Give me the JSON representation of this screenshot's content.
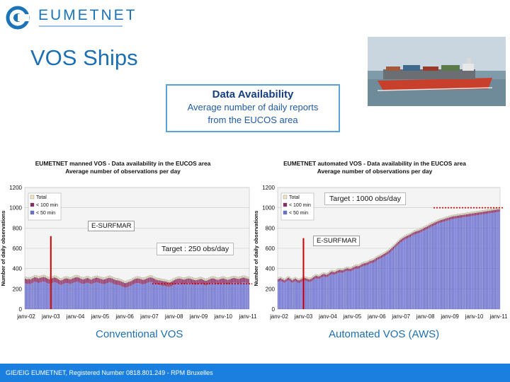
{
  "header": {
    "logo_text": "EUMETNET",
    "title": "VOS Ships"
  },
  "availability_box": {
    "title": "Data Availability",
    "line1": "Average number of daily reports",
    "line2": "from the EUCOS area"
  },
  "captions": {
    "left": "Conventional VOS",
    "right": "Automated VOS (AWS)"
  },
  "footer": {
    "text": "GIE/EIG EUMETNET, Registered Number 0818.801.249 - RPM Bruxelles"
  },
  "colors": {
    "brand": "#1b74b8",
    "footer_bg": "#1b7fe0",
    "bar_blue": "#6b6fd0",
    "bar_purple": "#8a2b63",
    "bar_beige": "#efe7c4",
    "target_line": "#cc0000"
  },
  "chart_data": [
    {
      "type": "bar",
      "stacked": true,
      "title": "EUMETNET manned VOS - Data availability in the EUCOS area",
      "subtitle": "Average number of observations per day",
      "ylabel": "Number of daily observations",
      "xlabel": "",
      "ylim": [
        0,
        1200
      ],
      "yticks": [
        0,
        200,
        400,
        600,
        800,
        1000,
        1200
      ],
      "xticks": [
        "janv-02",
        "janv-03",
        "janv-04",
        "janv-05",
        "janv-06",
        "janv-07",
        "janv-08",
        "janv-09",
        "janv-10",
        "janv-11"
      ],
      "legend": [
        "Total",
        "< 100 min",
        "< 50 min"
      ],
      "legend_position": "top-left",
      "grid": true,
      "series": [
        {
          "name": "< 50 min",
          "values": [
            255,
            250,
            248,
            252,
            247,
            256,
            262,
            270,
            268,
            264,
            258,
            262,
            266,
            270,
            272,
            268,
            262,
            255,
            250,
            252,
            258,
            262,
            266,
            264,
            258,
            250,
            242,
            238,
            242,
            250,
            255,
            258,
            256,
            252,
            248,
            252,
            258,
            264,
            268,
            270,
            268,
            262,
            255,
            250,
            248,
            252,
            258,
            262,
            258,
            250,
            246,
            252,
            258,
            262,
            266,
            262,
            258,
            254,
            250,
            246,
            248,
            252,
            258,
            262,
            264,
            260,
            255,
            248,
            244,
            240,
            238,
            236,
            232,
            226,
            220,
            214,
            212,
            216,
            222,
            226,
            230,
            238,
            245,
            252,
            256,
            258,
            256,
            252,
            248,
            244,
            246,
            250,
            256,
            262,
            266,
            268,
            264,
            258,
            252,
            246,
            242,
            240,
            238,
            234,
            232,
            230,
            228,
            224,
            220,
            218,
            222,
            228,
            236,
            242,
            248,
            252,
            256,
            256,
            252,
            248,
            246,
            248,
            252,
            256,
            258,
            254,
            250,
            246,
            242,
            240,
            242,
            246,
            250,
            252,
            248,
            242,
            236,
            234,
            240,
            246,
            252,
            256,
            258,
            256,
            250,
            246,
            244,
            248,
            252,
            256,
            258,
            252,
            248,
            244,
            246,
            250,
            256,
            260,
            262,
            260,
            256,
            252,
            254,
            258,
            262,
            266,
            264,
            260,
            256,
            252
          ]
        },
        {
          "name": "< 100 min",
          "values": [
            45,
            45,
            45,
            45,
            45,
            45,
            45,
            45,
            45,
            45,
            45,
            45,
            45,
            45,
            45,
            45,
            45,
            45,
            45,
            45,
            45,
            45,
            45,
            45,
            45,
            45,
            45,
            45,
            45,
            45,
            45,
            45,
            45,
            45,
            45,
            45,
            45,
            45,
            45,
            45,
            45,
            45,
            45,
            45,
            45,
            45,
            45,
            45,
            45,
            45,
            45,
            45,
            45,
            45,
            45,
            45,
            45,
            45,
            45,
            45,
            45,
            45,
            45,
            45,
            45,
            45,
            45,
            45,
            45,
            45,
            45,
            45,
            45,
            45,
            45,
            45,
            45,
            45,
            45,
            45,
            45,
            45,
            45,
            45,
            45,
            45,
            45,
            45,
            45,
            45,
            45,
            45,
            45,
            45,
            45,
            45,
            45,
            45,
            45,
            45,
            45,
            45,
            45,
            45,
            45,
            45,
            45,
            45,
            45,
            45,
            45,
            45,
            45,
            45,
            45,
            45,
            45,
            45,
            45,
            45,
            45,
            45,
            45,
            45,
            45,
            45,
            45,
            45,
            45,
            45,
            45,
            45,
            45,
            45,
            45,
            45,
            45,
            45,
            45,
            45,
            45,
            45,
            45,
            45,
            45,
            45,
            45,
            45,
            45,
            45,
            45,
            45,
            45,
            45,
            45,
            45,
            45,
            45,
            45,
            45,
            45,
            45,
            45,
            45,
            45,
            45,
            45,
            45,
            45,
            45
          ]
        },
        {
          "name": "Total",
          "values": [
            20,
            20,
            20,
            20,
            20,
            20,
            20,
            20,
            20,
            20,
            20,
            20,
            20,
            20,
            20,
            20,
            20,
            20,
            20,
            20,
            20,
            20,
            20,
            20,
            20,
            20,
            20,
            20,
            20,
            20,
            20,
            20,
            20,
            20,
            20,
            20,
            20,
            20,
            20,
            20,
            20,
            20,
            20,
            20,
            20,
            20,
            20,
            20,
            20,
            20,
            20,
            20,
            20,
            20,
            20,
            20,
            20,
            20,
            20,
            20,
            20,
            20,
            20,
            20,
            20,
            20,
            20,
            20,
            20,
            20,
            20,
            20,
            20,
            20,
            20,
            20,
            20,
            20,
            20,
            20,
            20,
            20,
            20,
            20,
            20,
            20,
            20,
            20,
            20,
            20,
            20,
            20,
            20,
            20,
            20,
            20,
            20,
            20,
            20,
            20,
            20,
            20,
            20,
            20,
            20,
            20,
            20,
            20,
            20,
            20,
            20,
            20,
            20,
            20,
            20,
            20,
            20,
            20,
            20,
            20,
            20,
            20,
            20,
            20,
            20,
            20,
            20,
            20,
            20,
            20,
            20,
            20,
            20,
            20,
            20,
            20,
            20,
            20,
            20,
            20,
            20,
            20,
            20,
            20,
            20,
            20,
            20,
            20,
            20,
            20,
            20,
            20,
            20,
            20,
            20,
            20,
            20,
            20,
            20,
            20,
            20,
            20,
            20,
            20,
            20,
            20,
            20,
            20,
            20,
            20
          ]
        }
      ],
      "annotations": {
        "target_label": "Target : 250 obs/day",
        "target_value": 250,
        "esurfmar_label": "E-SURFMAR",
        "esurfmar_start": "janv-03"
      }
    },
    {
      "type": "bar",
      "stacked": true,
      "title": "EUMETNET automated VOS - Data availability in the EUCOS area",
      "subtitle": "Average number of observations per day",
      "ylabel": "Number of daily observations",
      "xlabel": "",
      "ylim": [
        0,
        1200
      ],
      "yticks": [
        0,
        200,
        400,
        600,
        800,
        1000,
        1200
      ],
      "xticks": [
        "janv-02",
        "janv-03",
        "janv-04",
        "janv-05",
        "janv-06",
        "janv-07",
        "janv-08",
        "janv-09",
        "janv-10",
        "janv-11"
      ],
      "legend": [
        "Total",
        "< 100 min",
        "< 50 min"
      ],
      "legend_position": "top-left",
      "grid": true,
      "series": [
        {
          "name": "< 50 min",
          "values": [
            270,
            275,
            280,
            270,
            265,
            260,
            270,
            280,
            285,
            275,
            265,
            260,
            270,
            275,
            270,
            262,
            258,
            265,
            272,
            278,
            282,
            280,
            275,
            270,
            268,
            272,
            280,
            290,
            298,
            305,
            300,
            298,
            302,
            312,
            318,
            322,
            318,
            315,
            320,
            330,
            340,
            345,
            342,
            340,
            345,
            352,
            358,
            362,
            360,
            358,
            362,
            370,
            375,
            378,
            375,
            372,
            376,
            384,
            390,
            396,
            400,
            398,
            402,
            410,
            418,
            424,
            428,
            430,
            434,
            440,
            448,
            452,
            456,
            460,
            468,
            478,
            486,
            492,
            498,
            505,
            512,
            520,
            528,
            536,
            545,
            555,
            566,
            578,
            590,
            602,
            615,
            628,
            640,
            652,
            662,
            672,
            680,
            688,
            694,
            700,
            706,
            712,
            720,
            728,
            735,
            740,
            744,
            748,
            752,
            758,
            765,
            772,
            778,
            784,
            790,
            798,
            805,
            812,
            818,
            824,
            830,
            836,
            842,
            848,
            852,
            856,
            860,
            864,
            868,
            872,
            876,
            880,
            884,
            888,
            890,
            892,
            894,
            896,
            898,
            900,
            902,
            904,
            906,
            908,
            910,
            912,
            914,
            916,
            918,
            920,
            922,
            924,
            926,
            928,
            930,
            932,
            934,
            936,
            938,
            940,
            942,
            944,
            946,
            948,
            950,
            952,
            954,
            956,
            958,
            960
          ]
        },
        {
          "name": "< 100 min",
          "values": [
            25,
            25,
            25,
            25,
            25,
            25,
            25,
            25,
            25,
            25,
            25,
            25,
            25,
            25,
            25,
            25,
            25,
            25,
            25,
            25,
            25,
            25,
            25,
            25,
            25,
            25,
            25,
            25,
            25,
            25,
            25,
            25,
            25,
            25,
            25,
            25,
            25,
            25,
            25,
            25,
            25,
            25,
            25,
            25,
            25,
            25,
            25,
            25,
            25,
            25,
            25,
            25,
            25,
            25,
            25,
            25,
            25,
            25,
            25,
            25,
            25,
            25,
            25,
            25,
            25,
            25,
            25,
            25,
            25,
            25,
            25,
            25,
            25,
            25,
            25,
            25,
            25,
            25,
            25,
            25,
            25,
            25,
            25,
            25,
            25,
            25,
            25,
            25,
            25,
            25,
            25,
            25,
            25,
            25,
            25,
            25,
            25,
            25,
            25,
            25,
            25,
            25,
            25,
            25,
            25,
            25,
            25,
            25,
            25,
            25,
            25,
            25,
            25,
            25,
            25,
            25,
            25,
            25,
            25,
            25,
            25,
            25,
            25,
            25,
            25,
            25,
            25,
            25,
            25,
            25,
            25,
            25,
            25,
            25,
            25,
            25,
            25,
            25,
            25,
            25,
            25,
            25,
            25,
            25,
            25,
            25,
            25,
            25,
            25,
            25,
            25,
            25,
            25,
            25,
            25,
            25,
            25,
            25,
            25,
            25,
            25,
            25,
            25,
            25,
            25,
            25,
            25,
            25,
            25,
            25
          ]
        },
        {
          "name": "Total",
          "values": [
            15,
            15,
            15,
            15,
            15,
            15,
            15,
            15,
            15,
            15,
            15,
            15,
            15,
            15,
            15,
            15,
            15,
            15,
            15,
            15,
            15,
            15,
            15,
            15,
            15,
            15,
            15,
            15,
            15,
            15,
            15,
            15,
            15,
            15,
            15,
            15,
            15,
            15,
            15,
            15,
            15,
            15,
            15,
            15,
            15,
            15,
            15,
            15,
            15,
            15,
            15,
            15,
            15,
            15,
            15,
            15,
            15,
            15,
            15,
            15,
            15,
            15,
            15,
            15,
            15,
            15,
            15,
            15,
            15,
            15,
            15,
            15,
            15,
            15,
            15,
            15,
            15,
            15,
            15,
            15,
            15,
            15,
            15,
            15,
            15,
            15,
            15,
            15,
            15,
            15,
            15,
            15,
            15,
            15,
            15,
            15,
            15,
            15,
            15,
            15,
            15,
            15,
            15,
            15,
            15,
            15,
            15,
            15,
            15,
            15,
            15,
            15,
            15,
            15,
            15,
            15,
            15,
            15,
            15,
            15,
            15,
            15,
            15,
            15,
            15,
            15,
            15,
            15,
            15,
            15,
            15,
            15,
            15,
            15,
            15,
            15,
            15,
            15,
            15,
            15,
            15,
            15,
            15,
            15,
            15,
            15,
            15,
            15,
            15,
            15,
            15,
            15,
            15,
            15,
            15,
            15,
            15,
            15,
            15,
            15,
            15,
            15,
            15,
            15,
            15,
            15,
            15,
            15,
            15,
            15
          ]
        }
      ],
      "annotations": {
        "target_label": "Target : 1000 obs/day",
        "target_value": 1000,
        "esurfmar_label": "E-SURFMAR",
        "esurfmar_start": "janv-03"
      }
    }
  ]
}
